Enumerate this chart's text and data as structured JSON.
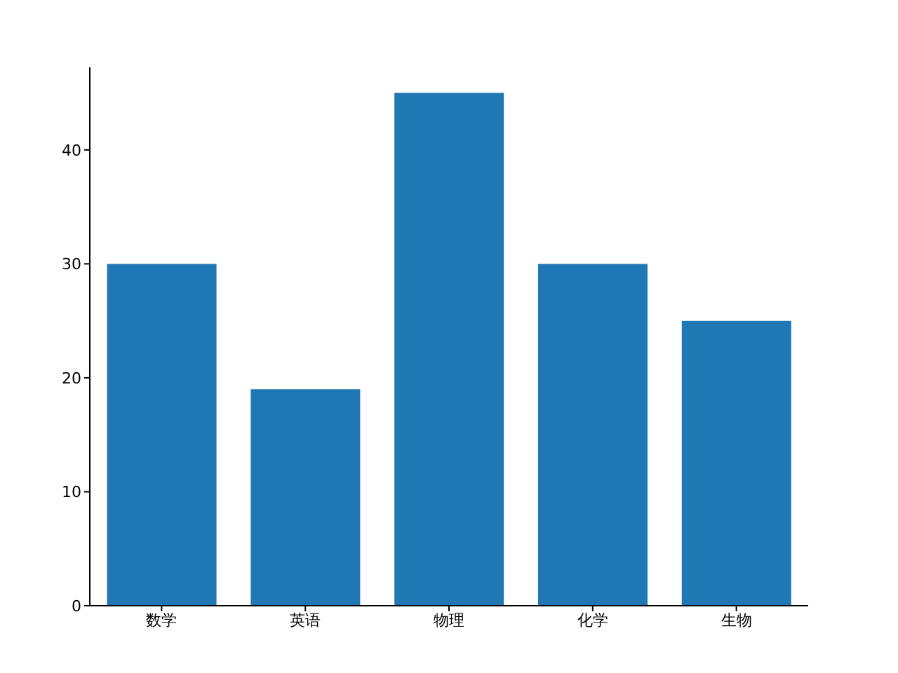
{
  "chart_data": {
    "type": "bar",
    "categories": [
      "数学",
      "英语",
      "物理",
      "化学",
      "生物"
    ],
    "values": [
      30,
      19,
      45,
      30,
      25
    ],
    "color": "#1f77b4",
    "ylim": [
      0,
      47.25
    ],
    "yticks": [
      0,
      10,
      20,
      30,
      40
    ]
  }
}
